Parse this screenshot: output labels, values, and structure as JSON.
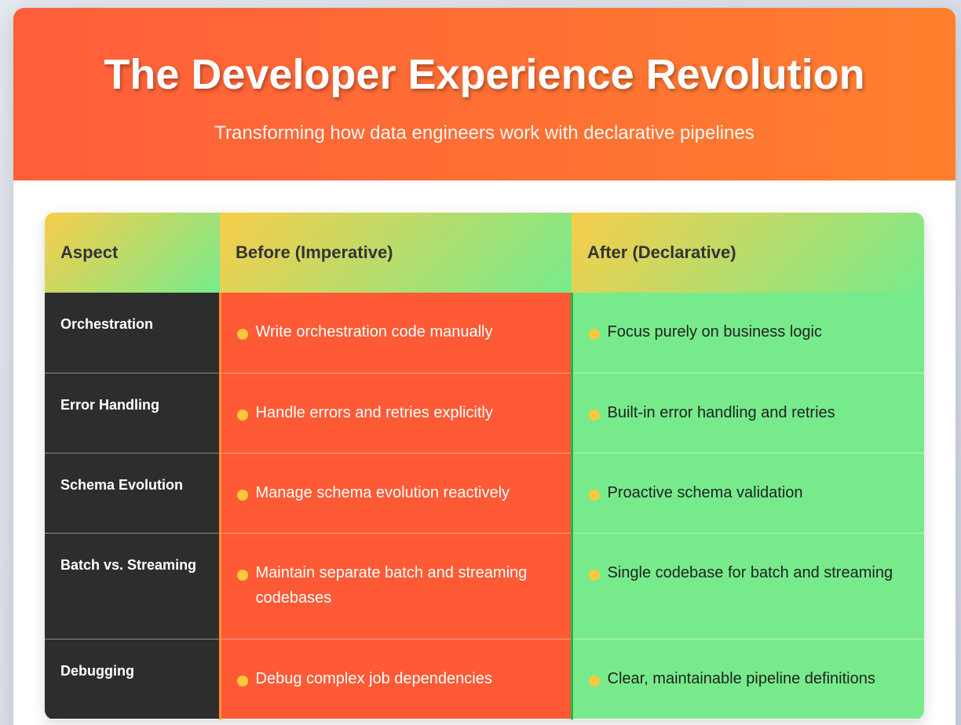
{
  "header": {
    "title": "The Developer Experience Revolution",
    "subtitle": "Transforming how data engineers work with declarative pipelines"
  },
  "table": {
    "columns": [
      "Aspect",
      "Before (Imperative)",
      "After (Declarative)"
    ],
    "rows": [
      [
        "Orchestration",
        "Write orchestration code manually",
        "Focus purely on business logic"
      ],
      [
        "Error Handling",
        "Handle errors and retries explicitly",
        "Built-in error handling and retries"
      ],
      [
        "Schema Evolution",
        "Manage schema evolution reactively",
        "Proactive schema validation"
      ],
      [
        "Batch vs. Streaming",
        "Maintain separate batch and streaming codebases",
        "Single codebase for batch and streaming"
      ],
      [
        "Debugging",
        "Debug complex job dependencies",
        "Clear, maintainable pipeline definitions"
      ]
    ]
  }
}
